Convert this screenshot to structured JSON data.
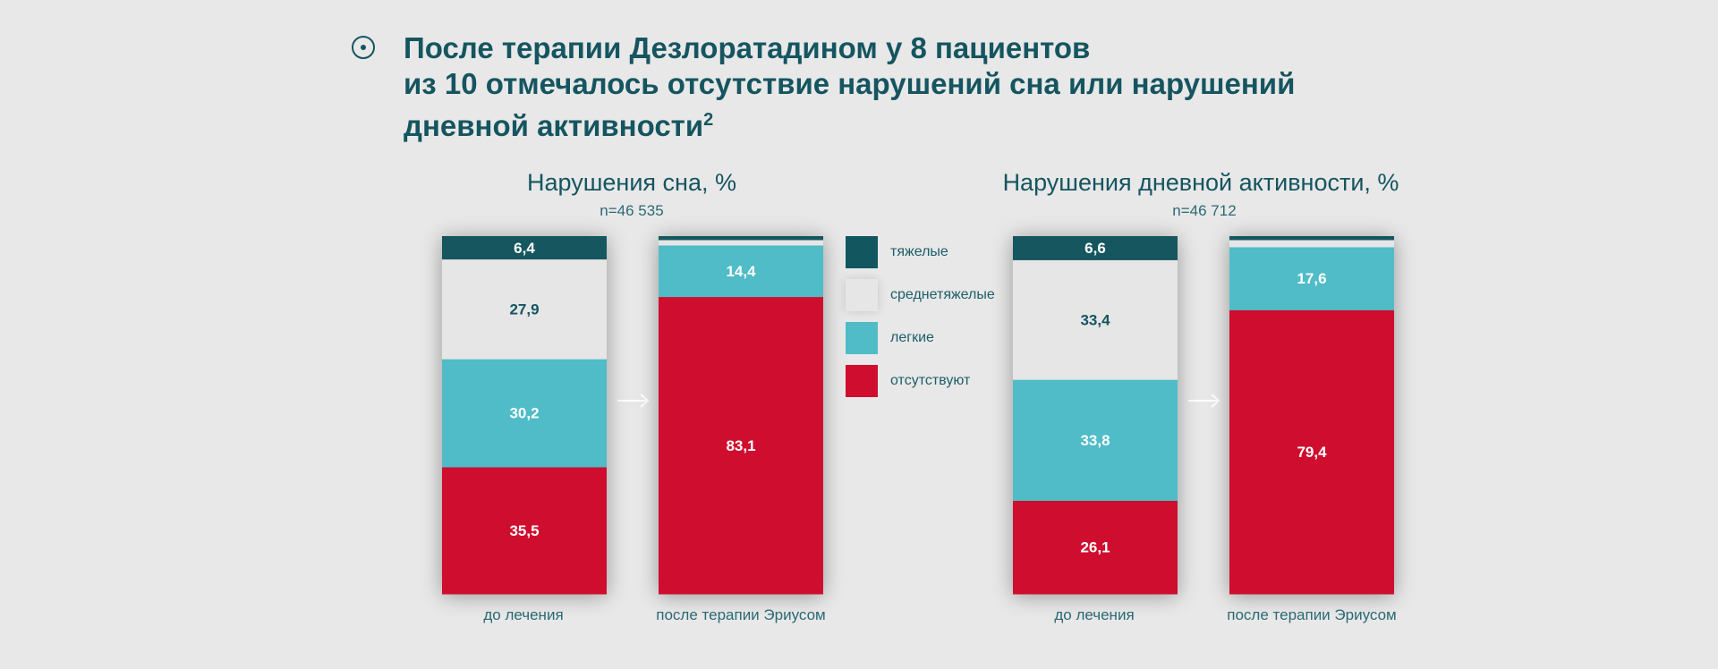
{
  "headline": {
    "line1": "После терапии Дезлоратадином у 8 пациентов",
    "line2": "из 10 отмечалось отсутствие нарушений сна или нарушений",
    "line3": "дневной активности",
    "superscript": "2"
  },
  "legend": [
    {
      "label": "тяжелые",
      "color": "#12565f"
    },
    {
      "label": "среднетяжелые",
      "color": "#e6e6e6"
    },
    {
      "label": "легкие",
      "color": "#4fbcc8"
    },
    {
      "label": "отсутствуют",
      "color": "#cf0e2f"
    }
  ],
  "chart_data": [
    {
      "type": "bar",
      "stacked": true,
      "title": "Нарушения сна, %",
      "subtitle": "n=46 535",
      "categories": [
        "до лечения",
        "после терапии Эриусом"
      ],
      "series": [
        {
          "name": "отсутствуют",
          "color": "#cf0e2f",
          "values": [
            35.5,
            83.1
          ],
          "labels": [
            "35,5",
            "83,1"
          ]
        },
        {
          "name": "легкие",
          "color": "#4fbcc8",
          "values": [
            30.2,
            14.4
          ],
          "labels": [
            "30,2",
            "14,4"
          ]
        },
        {
          "name": "среднетяжелые",
          "color": "#e6e6e6",
          "values": [
            27.9,
            1.5
          ],
          "labels": [
            "27,9",
            ""
          ]
        },
        {
          "name": "тяжелые",
          "color": "#12565f",
          "values": [
            6.4,
            1.0
          ],
          "labels": [
            "6,4",
            ""
          ]
        }
      ]
    },
    {
      "type": "bar",
      "stacked": true,
      "title": "Нарушения дневной активности, %",
      "subtitle": "n=46 712",
      "categories": [
        "до лечения",
        "после терапии Эриусом"
      ],
      "series": [
        {
          "name": "отсутствуют",
          "color": "#cf0e2f",
          "values": [
            26.1,
            79.4
          ],
          "labels": [
            "26,1",
            "79,4"
          ]
        },
        {
          "name": "легкие",
          "color": "#4fbcc8",
          "values": [
            33.8,
            17.6
          ],
          "labels": [
            "33,8",
            "17,6"
          ]
        },
        {
          "name": "среднетяжелые",
          "color": "#e6e6e6",
          "values": [
            33.4,
            2.0
          ],
          "labels": [
            "33,4",
            ""
          ]
        },
        {
          "name": "тяжелые",
          "color": "#12565f",
          "values": [
            6.6,
            1.0
          ],
          "labels": [
            "6,6",
            ""
          ]
        }
      ]
    }
  ]
}
